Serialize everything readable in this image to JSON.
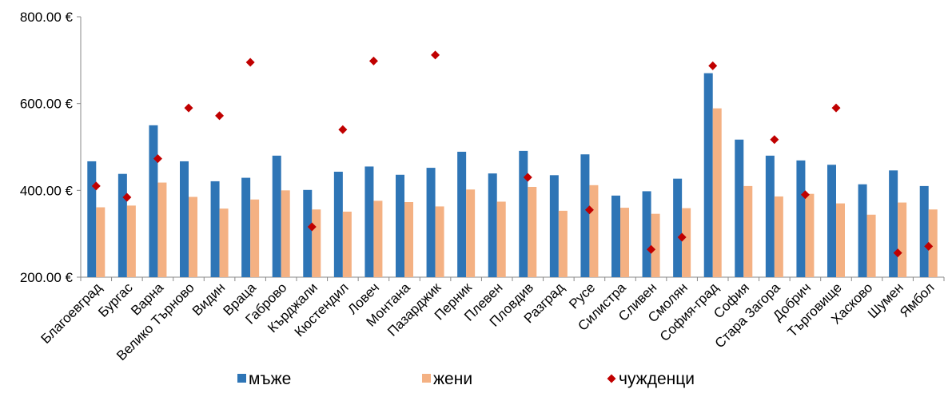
{
  "chart_data": {
    "type": "bar",
    "categories": [
      "Благоевград",
      "Бургас",
      "Варна",
      "Велико Търново",
      "Видин",
      "Враца",
      "Габрово",
      "Кърджали",
      "Кюстендил",
      "Ловеч",
      "Монтана",
      "Пазарджик",
      "Перник",
      "Плевен",
      "Пловдив",
      "Разград",
      "Русе",
      "Силистра",
      "Сливен",
      "Смолян",
      "София-град",
      "София",
      "Стара Загора",
      "Добрич",
      "Търговище",
      "Хасково",
      "Шумен",
      "Ямбол"
    ],
    "series": [
      {
        "name": "мъже",
        "type": "bar",
        "color": "#2e75b6",
        "values": [
          467,
          438,
          550,
          467,
          421,
          429,
          480,
          401,
          443,
          455,
          436,
          452,
          489,
          439,
          491,
          435,
          483,
          388,
          398,
          427,
          670,
          517,
          480,
          469,
          459,
          414,
          446,
          410
        ]
      },
      {
        "name": "жени",
        "type": "bar",
        "color": "#f4b183",
        "values": [
          361,
          365,
          418,
          385,
          358,
          379,
          400,
          356,
          351,
          376,
          373,
          363,
          402,
          374,
          408,
          353,
          412,
          360,
          346,
          359,
          589,
          410,
          386,
          392,
          370,
          344,
          372,
          356
        ]
      },
      {
        "name": "чужденци",
        "type": "scatter",
        "marker": "diamond",
        "color": "#c00000",
        "values": [
          410,
          384,
          473,
          590,
          572,
          695,
          null,
          316,
          540,
          698,
          null,
          712,
          null,
          null,
          430,
          null,
          355,
          null,
          264,
          292,
          687,
          null,
          517,
          390,
          590,
          null,
          256,
          271
        ]
      }
    ],
    "y_ticks": [
      "200.00 €",
      "400.00 €",
      "600.00 €",
      "800.00 €"
    ],
    "ylim": [
      200,
      800
    ],
    "grid": false,
    "legend_position": "bottom"
  }
}
